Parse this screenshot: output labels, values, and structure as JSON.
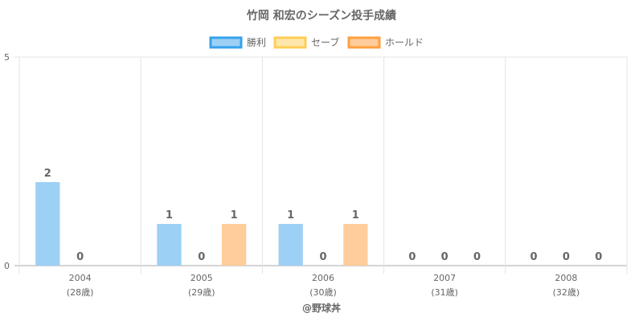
{
  "chart_data": {
    "type": "bar",
    "title": "竹岡 和宏のシーズン投手成績",
    "categories": [
      "2004",
      "2005",
      "2006",
      "2007",
      "2008"
    ],
    "category_sublabels": [
      "(28歳)",
      "(29歳)",
      "(30歳)",
      "(31歳)",
      "(32歳)"
    ],
    "series": [
      {
        "name": "勝利",
        "values": [
          2,
          1,
          1,
          0,
          0
        ],
        "fill": "#9cd0f5",
        "stroke": "#36a2eb"
      },
      {
        "name": "セーブ",
        "values": [
          0,
          0,
          0,
          0,
          0
        ],
        "fill": "#ffe6aa",
        "stroke": "#ffcd56"
      },
      {
        "name": "ホールド",
        "values": [
          null,
          1,
          1,
          0,
          0
        ],
        "fill": "#ffcc9b",
        "stroke": "#ff9f40"
      }
    ],
    "y_ticks": [
      "0",
      "5"
    ],
    "ylim": [
      0,
      5
    ],
    "grid": true,
    "legend_position": "top",
    "credit": "@野球丼"
  }
}
